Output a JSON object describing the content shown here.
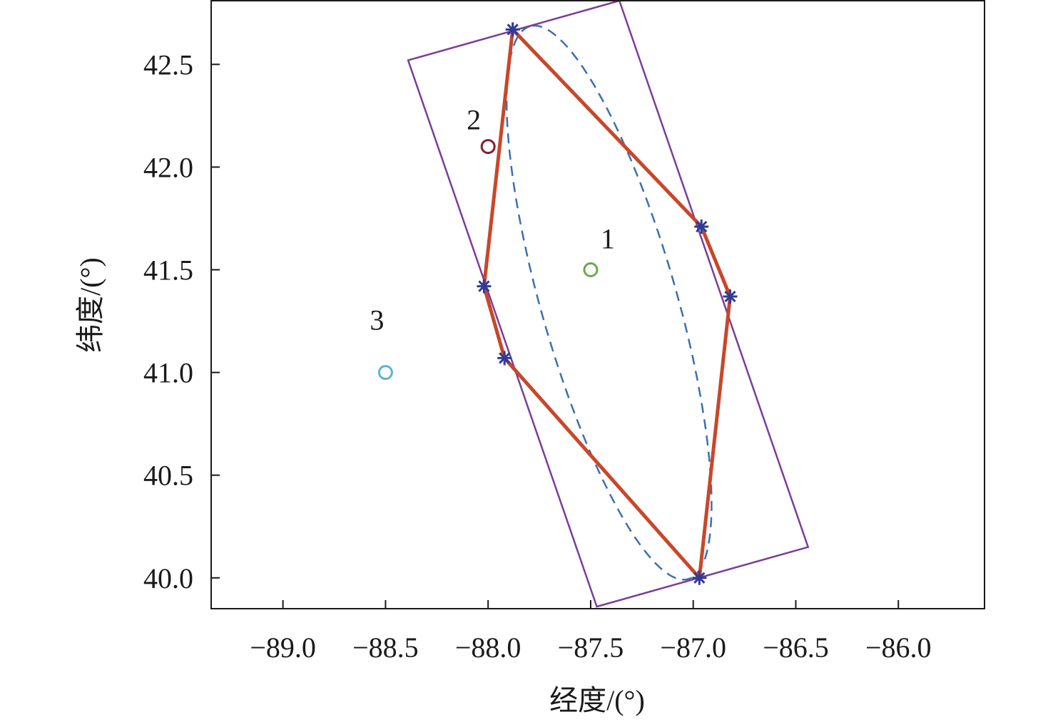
{
  "chart_data": {
    "type": "scatter",
    "xlabel": "经度/(°)",
    "ylabel": "纬度/(°)",
    "xlim": [
      -89.35,
      -85.58
    ],
    "ylim": [
      39.85,
      42.81
    ],
    "x_ticks": [
      -89.0,
      -88.5,
      -88.0,
      -87.5,
      -87.0,
      -86.5,
      -86.0
    ],
    "x_tick_labels": [
      "−89.0",
      "−88.5",
      "−88.0",
      "−87.5",
      "−87.0",
      "−86.5",
      "−86.0"
    ],
    "y_ticks": [
      40.0,
      40.5,
      41.0,
      41.5,
      42.0,
      42.5
    ],
    "y_tick_labels": [
      "40.0",
      "40.5",
      "41.0",
      "41.5",
      "42.0",
      "42.5"
    ],
    "grid": false,
    "legend": "none",
    "colors": {
      "hexagon": "#c8472a",
      "rectangle": "#7a3d98",
      "ellipse": "#3b6fb0",
      "star": "#2e3b9a",
      "point_1": "#6aa84f",
      "point_2": "#8b1a2b",
      "point_3": "#5ab4d6"
    },
    "hexagon_vertices": [
      {
        "x": -87.88,
        "y": 42.67
      },
      {
        "x": -86.96,
        "y": 41.71
      },
      {
        "x": -86.82,
        "y": 41.37
      },
      {
        "x": -86.97,
        "y": 40.0
      },
      {
        "x": -87.92,
        "y": 41.07
      },
      {
        "x": -88.02,
        "y": 41.42
      }
    ],
    "bounding_rectangle": [
      {
        "x": -88.39,
        "y": 42.52
      },
      {
        "x": -87.36,
        "y": 42.81
      },
      {
        "x": -86.44,
        "y": 40.15
      },
      {
        "x": -87.47,
        "y": 39.86
      }
    ],
    "ellipse": {
      "center": {
        "x": -87.41,
        "y": 41.34
      },
      "semi_major": 1.4,
      "semi_minor": 0.33,
      "rotation_deg": 106
    },
    "points": [
      {
        "label": "1",
        "x": -87.5,
        "y": 41.5
      },
      {
        "label": "2",
        "x": -88.0,
        "y": 42.1
      },
      {
        "label": "3",
        "x": -88.5,
        "y": 41.0
      }
    ]
  }
}
